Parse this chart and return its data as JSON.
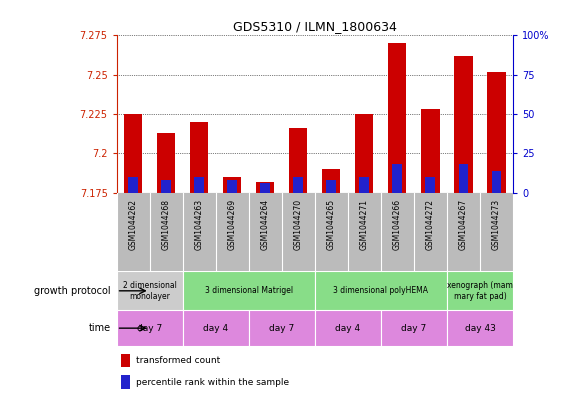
{
  "title": "GDS5310 / ILMN_1800634",
  "samples": [
    "GSM1044262",
    "GSM1044268",
    "GSM1044263",
    "GSM1044269",
    "GSM1044264",
    "GSM1044270",
    "GSM1044265",
    "GSM1044271",
    "GSM1044266",
    "GSM1044272",
    "GSM1044267",
    "GSM1044273"
  ],
  "red_values": [
    7.225,
    7.213,
    7.22,
    7.185,
    7.182,
    7.216,
    7.19,
    7.225,
    7.27,
    7.228,
    7.262,
    7.252
  ],
  "blue_percent": [
    10,
    8,
    10,
    8,
    6,
    10,
    8,
    10,
    18,
    10,
    18,
    14
  ],
  "ylim_left": [
    7.175,
    7.275
  ],
  "ylim_right": [
    0,
    100
  ],
  "yticks_left": [
    7.175,
    7.2,
    7.225,
    7.25,
    7.275
  ],
  "yticks_right": [
    0,
    25,
    50,
    75,
    100
  ],
  "ytick_labels_left": [
    "7.175",
    "7.2",
    "7.225",
    "7.25",
    "7.275"
  ],
  "ytick_labels_right": [
    "0",
    "25",
    "50",
    "75",
    "100%"
  ],
  "bar_bottom": 7.175,
  "bar_width": 0.55,
  "blue_bar_width": 0.3,
  "red_color": "#cc0000",
  "blue_color": "#2222cc",
  "grid_color": "#000000",
  "bg_color": "#ffffff",
  "sample_bg_color": "#bbbbbb",
  "growth_protocol_groups": [
    {
      "label": "2 dimensional\nmonolayer",
      "start": 0,
      "end": 2,
      "color": "#cccccc"
    },
    {
      "label": "3 dimensional Matrigel",
      "start": 2,
      "end": 6,
      "color": "#88dd88"
    },
    {
      "label": "3 dimensional polyHEMA",
      "start": 6,
      "end": 10,
      "color": "#88dd88"
    },
    {
      "label": "xenograph (mam\nmary fat pad)",
      "start": 10,
      "end": 12,
      "color": "#88dd88"
    }
  ],
  "time_groups": [
    {
      "label": "day 7",
      "start": 0,
      "end": 2
    },
    {
      "label": "day 4",
      "start": 2,
      "end": 4
    },
    {
      "label": "day 7",
      "start": 4,
      "end": 6
    },
    {
      "label": "day 4",
      "start": 6,
      "end": 8
    },
    {
      "label": "day 7",
      "start": 8,
      "end": 10
    },
    {
      "label": "day 43",
      "start": 10,
      "end": 12
    }
  ],
  "time_color": "#dd88dd",
  "left_axis_color": "#cc2200",
  "right_axis_color": "#0000cc",
  "left_label": "growth protocol",
  "time_label": "time",
  "legend_items": [
    {
      "label": "transformed count",
      "color": "#cc0000"
    },
    {
      "label": "percentile rank within the sample",
      "color": "#2222cc"
    }
  ]
}
